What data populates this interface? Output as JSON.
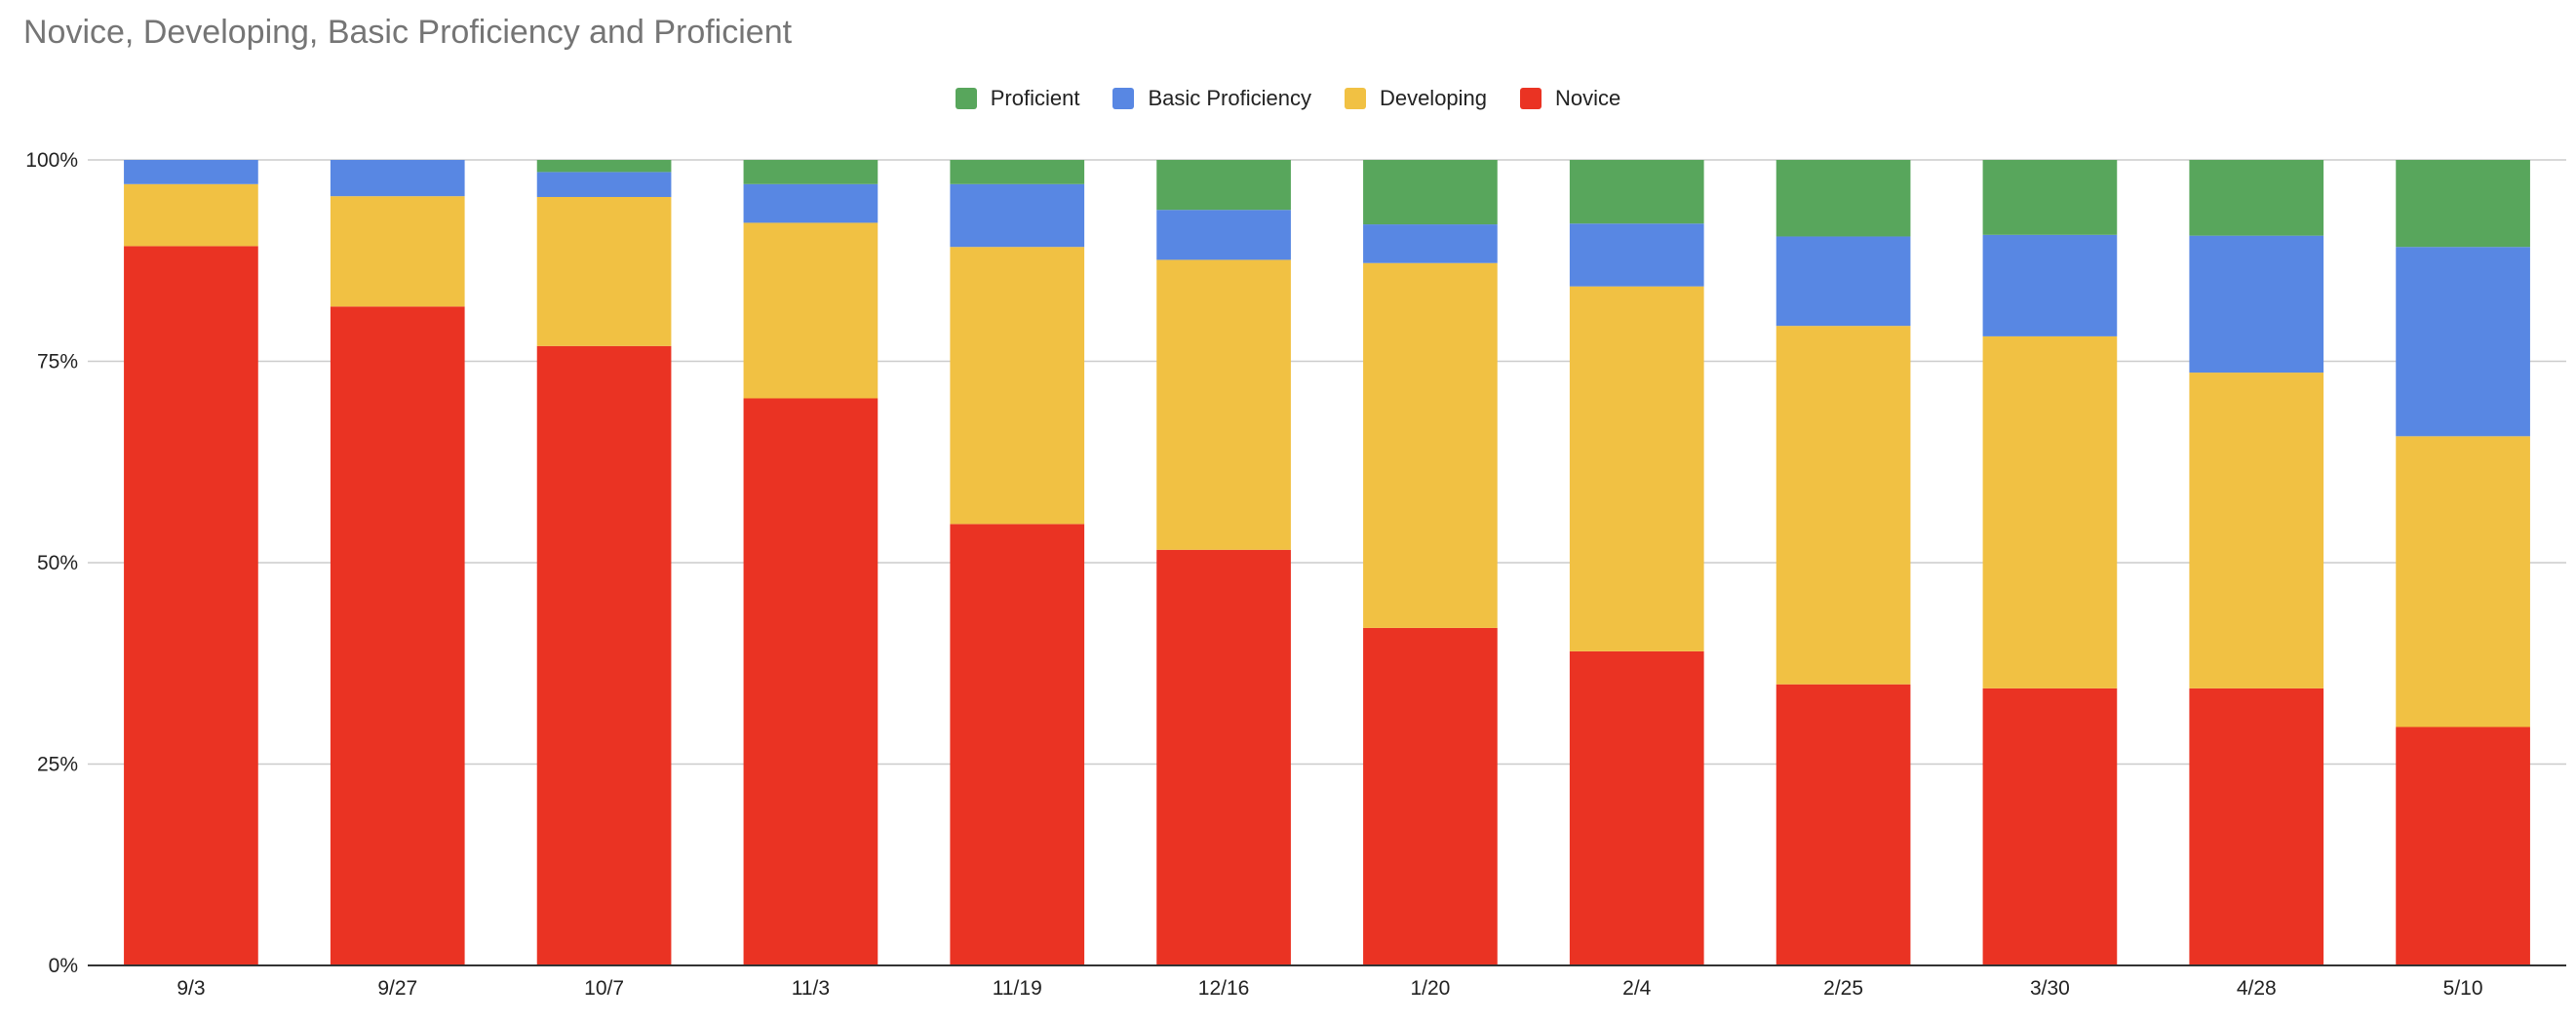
{
  "chart_data": {
    "type": "bar",
    "stacked": true,
    "percent": true,
    "title": "Novice, Developing, Basic Proficiency and Proficient",
    "xlabel": "",
    "ylabel": "",
    "ylim": [
      0,
      100
    ],
    "y_ticks": [
      "0%",
      "25%",
      "50%",
      "75%",
      "100%"
    ],
    "legend_position": "top",
    "categories": [
      "9/3",
      "9/27",
      "10/7",
      "11/3",
      "11/19",
      "12/16",
      "1/20",
      "2/4",
      "2/25",
      "3/30",
      "4/28",
      "5/10"
    ],
    "series": [
      {
        "name": "Novice",
        "color": "#ea3323",
        "values": [
          89.3,
          81.8,
          76.9,
          70.4,
          54.8,
          51.6,
          41.9,
          39.0,
          34.9,
          34.4,
          34.4,
          29.6
        ]
      },
      {
        "name": "Developing",
        "color": "#f1c143",
        "values": [
          7.7,
          13.7,
          18.5,
          21.8,
          34.4,
          36.0,
          45.3,
          45.3,
          44.5,
          43.7,
          39.2,
          36.1
        ]
      },
      {
        "name": "Basic Proficiency",
        "color": "#5887e3",
        "values": [
          3.0,
          4.5,
          3.1,
          4.8,
          7.8,
          6.2,
          4.8,
          7.8,
          11.1,
          12.6,
          17.0,
          23.5
        ]
      },
      {
        "name": "Proficient",
        "color": "#58a65c",
        "values": [
          0.0,
          0.0,
          1.5,
          3.0,
          3.0,
          6.2,
          8.0,
          7.9,
          9.5,
          9.3,
          9.4,
          10.8
        ]
      }
    ],
    "legend_order": [
      "Proficient",
      "Basic Proficiency",
      "Developing",
      "Novice"
    ]
  }
}
